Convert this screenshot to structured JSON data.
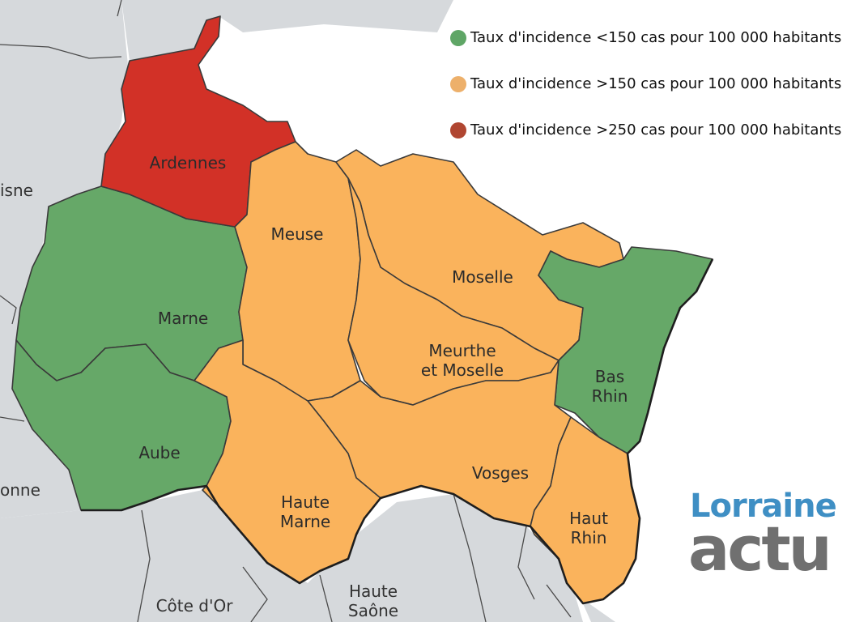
{
  "colors": {
    "low": "#66a868",
    "medium": "#fab35c",
    "high": "#d23127",
    "neighbor": "#d6d9dc",
    "legend_low": "#5fa666",
    "legend_medium": "#edb06b",
    "legend_high": "#b04631",
    "logo_top": "#3f8fc4",
    "logo_bottom": "#707070"
  },
  "legend": [
    {
      "label": "Taux d'incidence <150 cas pour 100 000 habitants",
      "level": "low"
    },
    {
      "label": "Taux d'incidence >150 cas pour 100 000 habitants",
      "level": "medium"
    },
    {
      "label": "Taux d'incidence >250 cas pour 100 000 habitants",
      "level": "high"
    }
  ],
  "departments": {
    "ardennes": {
      "label_lines": [
        "Ardennes"
      ],
      "level": "high"
    },
    "marne": {
      "label_lines": [
        "Marne"
      ],
      "level": "low"
    },
    "aube": {
      "label_lines": [
        "Aube"
      ],
      "level": "low"
    },
    "meuse": {
      "label_lines": [
        "Meuse"
      ],
      "level": "medium"
    },
    "moselle": {
      "label_lines": [
        "Moselle"
      ],
      "level": "medium"
    },
    "meurthe": {
      "label_lines": [
        "Meurthe",
        "et Moselle"
      ],
      "level": "medium"
    },
    "bas_rhin": {
      "label_lines": [
        "Bas",
        "Rhin"
      ],
      "level": "low"
    },
    "vosges": {
      "label_lines": [
        "Vosges"
      ],
      "level": "medium"
    },
    "haute_marne": {
      "label_lines": [
        "Haute",
        "Marne"
      ],
      "level": "medium"
    },
    "haut_rhin": {
      "label_lines": [
        "Haut",
        "Rhin"
      ],
      "level": "medium"
    }
  },
  "neighbors": {
    "aisne": "isne",
    "yonne": "onne",
    "cote_dor": "Côte d'Or",
    "haute_saone": [
      "Haute",
      "Saône"
    ]
  },
  "logo": {
    "top": "Lorraine",
    "bottom": "actu"
  }
}
